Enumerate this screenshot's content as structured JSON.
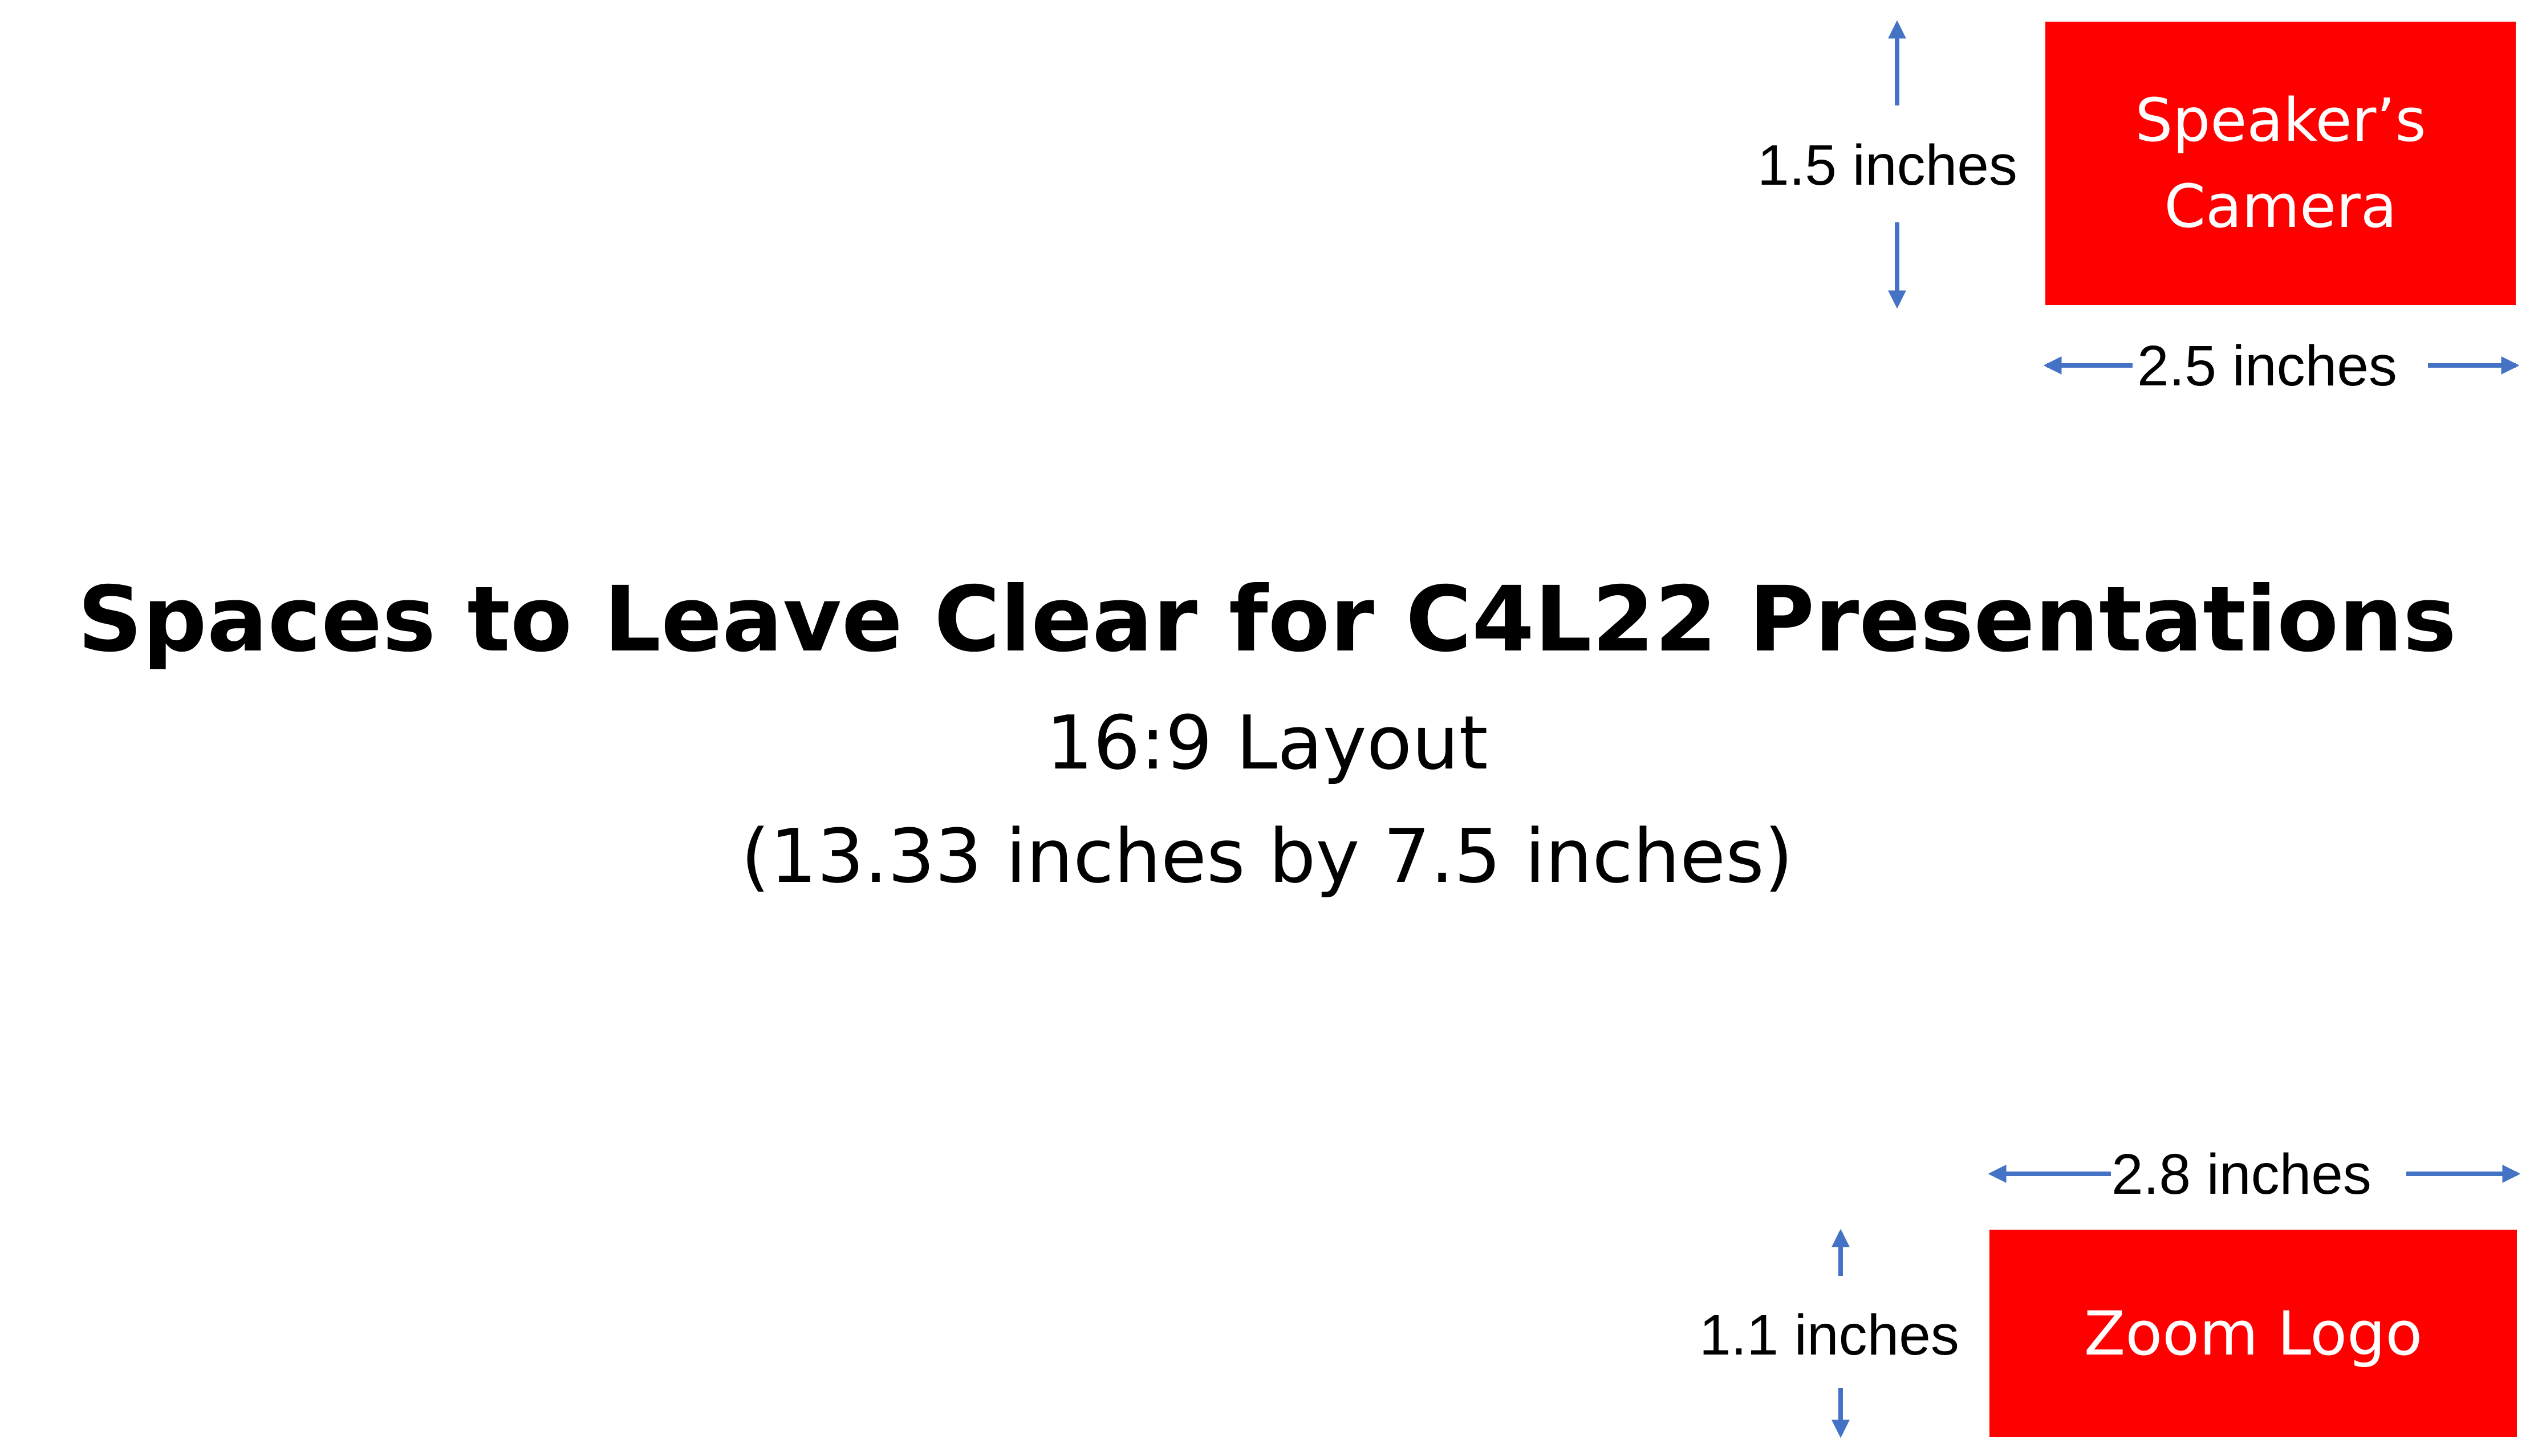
{
  "colors": {
    "box_fill": "#ff0000",
    "box_text": "#ffffff",
    "arrow": "#4472c4",
    "text": "#000000"
  },
  "camera_box": {
    "line1": "Speaker’s",
    "line2": "Camera",
    "height_label": "1.5 inches",
    "width_label": "2.5 inches"
  },
  "title": "Spaces to Leave Clear for C4L22 Presentations",
  "subtitle": {
    "line1": "16:9 Layout",
    "line2": "(13.33 inches by 7.5 inches)"
  },
  "logo_box": {
    "label": "Zoom Logo",
    "width_label": "2.8 inches",
    "height_label": "1.1 inches"
  }
}
